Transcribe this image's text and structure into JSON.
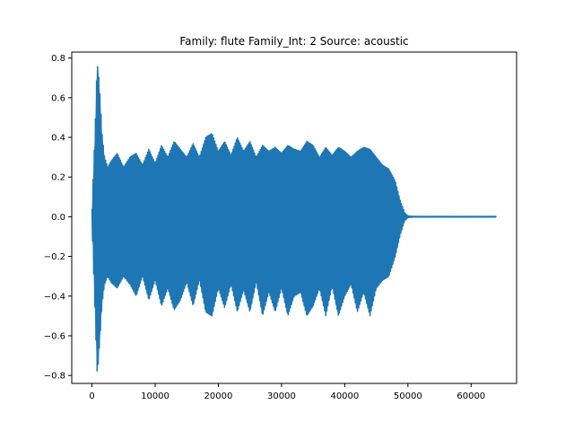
{
  "chart_data": {
    "type": "line",
    "title": "Family: flute Family_Int: 2 Source: acoustic",
    "xlabel": "",
    "ylabel": "",
    "xlim": [
      -3200,
      67200
    ],
    "ylim": [
      -0.84,
      0.83
    ],
    "xticks": [
      0,
      10000,
      20000,
      30000,
      40000,
      50000,
      60000
    ],
    "yticks": [
      -0.8,
      -0.6,
      -0.4,
      -0.2,
      0.0,
      0.2,
      0.4,
      0.6,
      0.8
    ],
    "xtick_labels": [
      "0",
      "10000",
      "20000",
      "30000",
      "40000",
      "50000",
      "60000"
    ],
    "ytick_labels": [
      "−0.8",
      "−0.6",
      "−0.4",
      "−0.2",
      "0.0",
      "0.2",
      "0.4",
      "0.6",
      "0.8"
    ],
    "grid": false,
    "legend": "none",
    "color": "#1f77b4",
    "series": [
      {
        "x": [
          0,
          500,
          800,
          1000,
          1300,
          1600,
          2000,
          2500,
          3000,
          4000,
          5000,
          6000,
          7000,
          8000,
          9000,
          10000,
          11000,
          12000,
          13000,
          14000,
          15000,
          16000,
          17000,
          18000,
          19000,
          20000,
          21000,
          22000,
          23000,
          24000,
          25000,
          26000,
          27000,
          28000,
          29000,
          30000,
          31000,
          32000,
          33000,
          34000,
          35000,
          36000,
          37000,
          38000,
          39000,
          40000,
          41000,
          42000,
          43000,
          44000,
          45000,
          46000,
          47000,
          48000,
          48800,
          49500,
          50000,
          51000,
          55000,
          60000,
          64000
        ],
        "upper": [
          0.04,
          0.45,
          0.77,
          0.74,
          0.6,
          0.42,
          0.3,
          0.25,
          0.28,
          0.32,
          0.25,
          0.3,
          0.32,
          0.26,
          0.34,
          0.27,
          0.36,
          0.3,
          0.38,
          0.34,
          0.3,
          0.37,
          0.3,
          0.4,
          0.42,
          0.33,
          0.38,
          0.31,
          0.4,
          0.33,
          0.38,
          0.3,
          0.36,
          0.33,
          0.35,
          0.32,
          0.36,
          0.34,
          0.33,
          0.38,
          0.36,
          0.3,
          0.35,
          0.31,
          0.35,
          0.33,
          0.3,
          0.33,
          0.35,
          0.34,
          0.3,
          0.26,
          0.24,
          0.18,
          0.08,
          0.02,
          0.004,
          0.002,
          0.002,
          0.002,
          0.002
        ],
        "lower": [
          -0.04,
          -0.5,
          -0.78,
          -0.74,
          -0.6,
          -0.44,
          -0.34,
          -0.3,
          -0.33,
          -0.36,
          -0.3,
          -0.34,
          -0.4,
          -0.3,
          -0.42,
          -0.32,
          -0.45,
          -0.36,
          -0.47,
          -0.42,
          -0.33,
          -0.45,
          -0.32,
          -0.48,
          -0.5,
          -0.36,
          -0.46,
          -0.34,
          -0.48,
          -0.37,
          -0.48,
          -0.33,
          -0.5,
          -0.38,
          -0.48,
          -0.36,
          -0.5,
          -0.4,
          -0.38,
          -0.5,
          -0.45,
          -0.36,
          -0.5,
          -0.35,
          -0.5,
          -0.4,
          -0.34,
          -0.48,
          -0.38,
          -0.5,
          -0.36,
          -0.32,
          -0.3,
          -0.2,
          -0.09,
          -0.02,
          -0.004,
          -0.002,
          -0.002,
          -0.002,
          -0.002
        ]
      }
    ]
  }
}
